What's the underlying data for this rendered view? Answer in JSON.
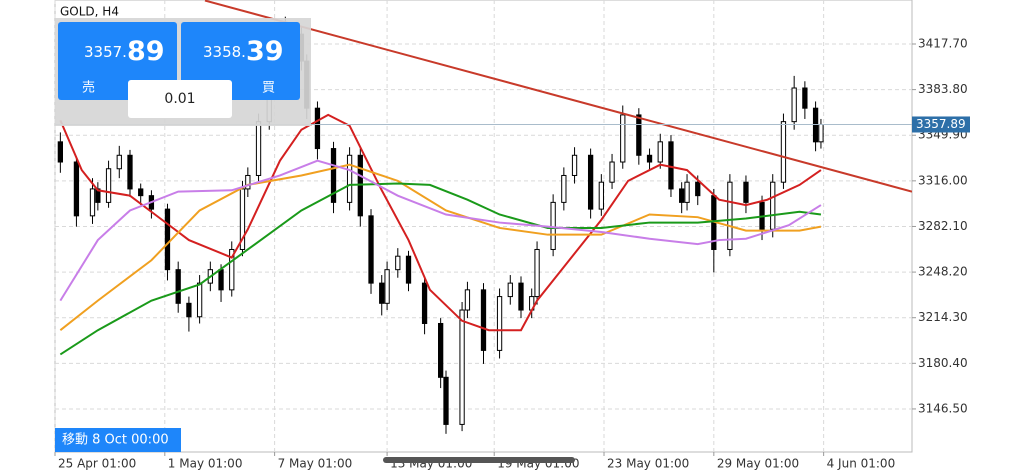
{
  "chart_data": {
    "type": "candlestick",
    "title": "GOLD, H4",
    "xlim": [
      0,
      160
    ],
    "ylim": [
      3114.5,
      3450.4
    ],
    "grid": true,
    "up_color": "#ffffff",
    "down_color": "#000000",
    "x": [
      1,
      4,
      7,
      8,
      10,
      12,
      14,
      16,
      18,
      21,
      23,
      25,
      27,
      29,
      31,
      33,
      35,
      36,
      38,
      40,
      43,
      46,
      47,
      49,
      52,
      55,
      57,
      59,
      61,
      62,
      64,
      66,
      69,
      72,
      73,
      76,
      77,
      80,
      83,
      85,
      87,
      89,
      90,
      93,
      95,
      97,
      100,
      102,
      104,
      106,
      109,
      111,
      113,
      115,
      117,
      118,
      120,
      123,
      126,
      129,
      132,
      134,
      136,
      138,
      140,
      142,
      143
    ],
    "open": [
      3345,
      3330,
      3290,
      3310,
      3300,
      3325,
      3335,
      3310,
      3305,
      3295,
      3250,
      3225,
      3215,
      3240,
      3250,
      3235,
      3265,
      3310,
      3320,
      3360,
      3390,
      3425,
      3405,
      3370,
      3340,
      3300,
      3335,
      3290,
      3240,
      3225,
      3250,
      3260,
      3240,
      3210,
      3170,
      3135,
      3220,
      3235,
      3190,
      3230,
      3240,
      3220,
      3230,
      3265,
      3300,
      3320,
      3335,
      3295,
      3315,
      3330,
      3365,
      3335,
      3330,
      3345,
      3310,
      3300,
      3315,
      3305,
      3265,
      3315,
      3300,
      3280,
      3315,
      3360,
      3385,
      3370,
      3345
    ],
    "high": [
      3352,
      3334,
      3318,
      3315,
      3331,
      3342,
      3339,
      3314,
      3309,
      3299,
      3256,
      3230,
      3246,
      3256,
      3254,
      3271,
      3316,
      3326,
      3366,
      3397,
      3438,
      3430,
      3410,
      3375,
      3345,
      3341,
      3340,
      3295,
      3246,
      3256,
      3266,
      3264,
      3245,
      3214,
      3175,
      3226,
      3241,
      3240,
      3236,
      3246,
      3245,
      3236,
      3271,
      3306,
      3326,
      3341,
      3340,
      3321,
      3336,
      3372,
      3370,
      3340,
      3351,
      3350,
      3315,
      3321,
      3320,
      3310,
      3321,
      3320,
      3305,
      3321,
      3366,
      3394,
      3390,
      3375,
      3362
    ],
    "low": [
      3322,
      3282,
      3284,
      3294,
      3296,
      3318,
      3304,
      3298,
      3288,
      3242,
      3218,
      3204,
      3210,
      3234,
      3226,
      3230,
      3260,
      3304,
      3314,
      3354,
      3384,
      3398,
      3362,
      3332,
      3292,
      3294,
      3282,
      3232,
      3216,
      3220,
      3244,
      3234,
      3202,
      3162,
      3128,
      3130,
      3214,
      3180,
      3184,
      3224,
      3214,
      3214,
      3224,
      3260,
      3294,
      3314,
      3288,
      3290,
      3310,
      3325,
      3328,
      3324,
      3325,
      3304,
      3292,
      3294,
      3298,
      3248,
      3260,
      3292,
      3272,
      3274,
      3310,
      3354,
      3362,
      3338,
      3340
    ],
    "close": [
      3330,
      3290,
      3310,
      3300,
      3325,
      3335,
      3310,
      3305,
      3295,
      3250,
      3225,
      3215,
      3240,
      3250,
      3235,
      3265,
      3310,
      3320,
      3360,
      3390,
      3425,
      3405,
      3370,
      3340,
      3300,
      3335,
      3290,
      3240,
      3225,
      3250,
      3260,
      3240,
      3210,
      3170,
      3135,
      3220,
      3235,
      3190,
      3230,
      3240,
      3220,
      3230,
      3265,
      3300,
      3320,
      3335,
      3295,
      3315,
      3330,
      3365,
      3335,
      3330,
      3345,
      3310,
      3300,
      3315,
      3305,
      3265,
      3315,
      3300,
      3280,
      3315,
      3360,
      3385,
      3370,
      3345,
      3357.89
    ],
    "lines": [
      {
        "color": "#d42020",
        "x": [
          1,
          5,
          8,
          14,
          20,
          25,
          33,
          36,
          42,
          46,
          51,
          55,
          61,
          66,
          70,
          76,
          81,
          87,
          90,
          96,
          102,
          107,
          113,
          118,
          124,
          129,
          133,
          139,
          143
        ],
        "values": [
          3361,
          3324,
          3309,
          3305,
          3287,
          3272,
          3259,
          3280,
          3331,
          3354,
          3365,
          3357,
          3309,
          3272,
          3235,
          3212,
          3205,
          3205,
          3227,
          3257,
          3287,
          3316,
          3328,
          3324,
          3302,
          3298,
          3302,
          3313,
          3324
        ]
      },
      {
        "color": "#f0a020",
        "x": [
          1,
          8,
          18,
          27,
          36,
          46,
          55,
          64,
          73,
          83,
          92,
          102,
          111,
          120,
          129,
          139,
          143
        ],
        "values": [
          3205,
          3227,
          3257,
          3294,
          3313,
          3320,
          3328,
          3316,
          3294,
          3281,
          3276,
          3276,
          3291,
          3289,
          3279,
          3279,
          3282
        ]
      },
      {
        "color": "#1a9a1a",
        "x": [
          1,
          8,
          18,
          27,
          36,
          46,
          55,
          64,
          70,
          77,
          83,
          92,
          102,
          111,
          120,
          129,
          139,
          143
        ],
        "values": [
          3187,
          3205,
          3227,
          3239,
          3265,
          3294,
          3313,
          3314,
          3313,
          3302,
          3291,
          3281,
          3281,
          3285,
          3285,
          3288,
          3293,
          3291
        ]
      },
      {
        "color": "#c87ee8",
        "x": [
          1,
          8,
          14,
          23,
          33,
          42,
          49,
          55,
          64,
          73,
          83,
          92,
          102,
          111,
          120,
          124,
          129,
          137,
          143
        ],
        "values": [
          3227,
          3272,
          3294,
          3308,
          3309,
          3320,
          3331,
          3324,
          3305,
          3291,
          3285,
          3282,
          3278,
          3273,
          3269,
          3272,
          3273,
          3283,
          3298
        ]
      }
    ],
    "trendline": {
      "color": "#c83a2a",
      "x": [
        28,
        160
      ],
      "values": [
        3450,
        3308
      ]
    },
    "price_line_color": "#a9bccb",
    "price_tag_color": "#2d6fa8",
    "yticks": [
      {
        "value": 3417.7,
        "label": "3417.70"
      },
      {
        "value": 3383.8,
        "label": "3383.80"
      },
      {
        "value": 3349.9,
        "label": "3349.90"
      },
      {
        "value": 3316.0,
        "label": "3316.00"
      },
      {
        "value": 3282.1,
        "label": "3282.10"
      },
      {
        "value": 3248.2,
        "label": "3248.20"
      },
      {
        "value": 3214.3,
        "label": "3214.30"
      },
      {
        "value": 3180.4,
        "label": "3180.40"
      },
      {
        "value": 3146.5,
        "label": "3146.50"
      }
    ],
    "xticks": [
      {
        "value": 0,
        "label": "25 Apr 01:00"
      },
      {
        "value": 20.5,
        "label": "1 May 01:00"
      },
      {
        "value": 41,
        "label": "7 May 01:00"
      },
      {
        "value": 62,
        "label": "13 May 01:00"
      },
      {
        "value": 82,
        "label": "19 May 01:00"
      },
      {
        "value": 102.5,
        "label": "23 May 01:00"
      },
      {
        "value": 123,
        "label": "29 May 01:00"
      },
      {
        "value": 143.5,
        "label": "4 Jun 01:00"
      }
    ]
  },
  "trade_panel": {
    "sell": {
      "label": "売",
      "price_prefix": "3357.",
      "price_big": "89"
    },
    "buy": {
      "label": "買",
      "price_prefix": "3358.",
      "price_big": "39"
    },
    "lot": "0.01"
  },
  "footer_label": "移動 8 Oct 00:00"
}
